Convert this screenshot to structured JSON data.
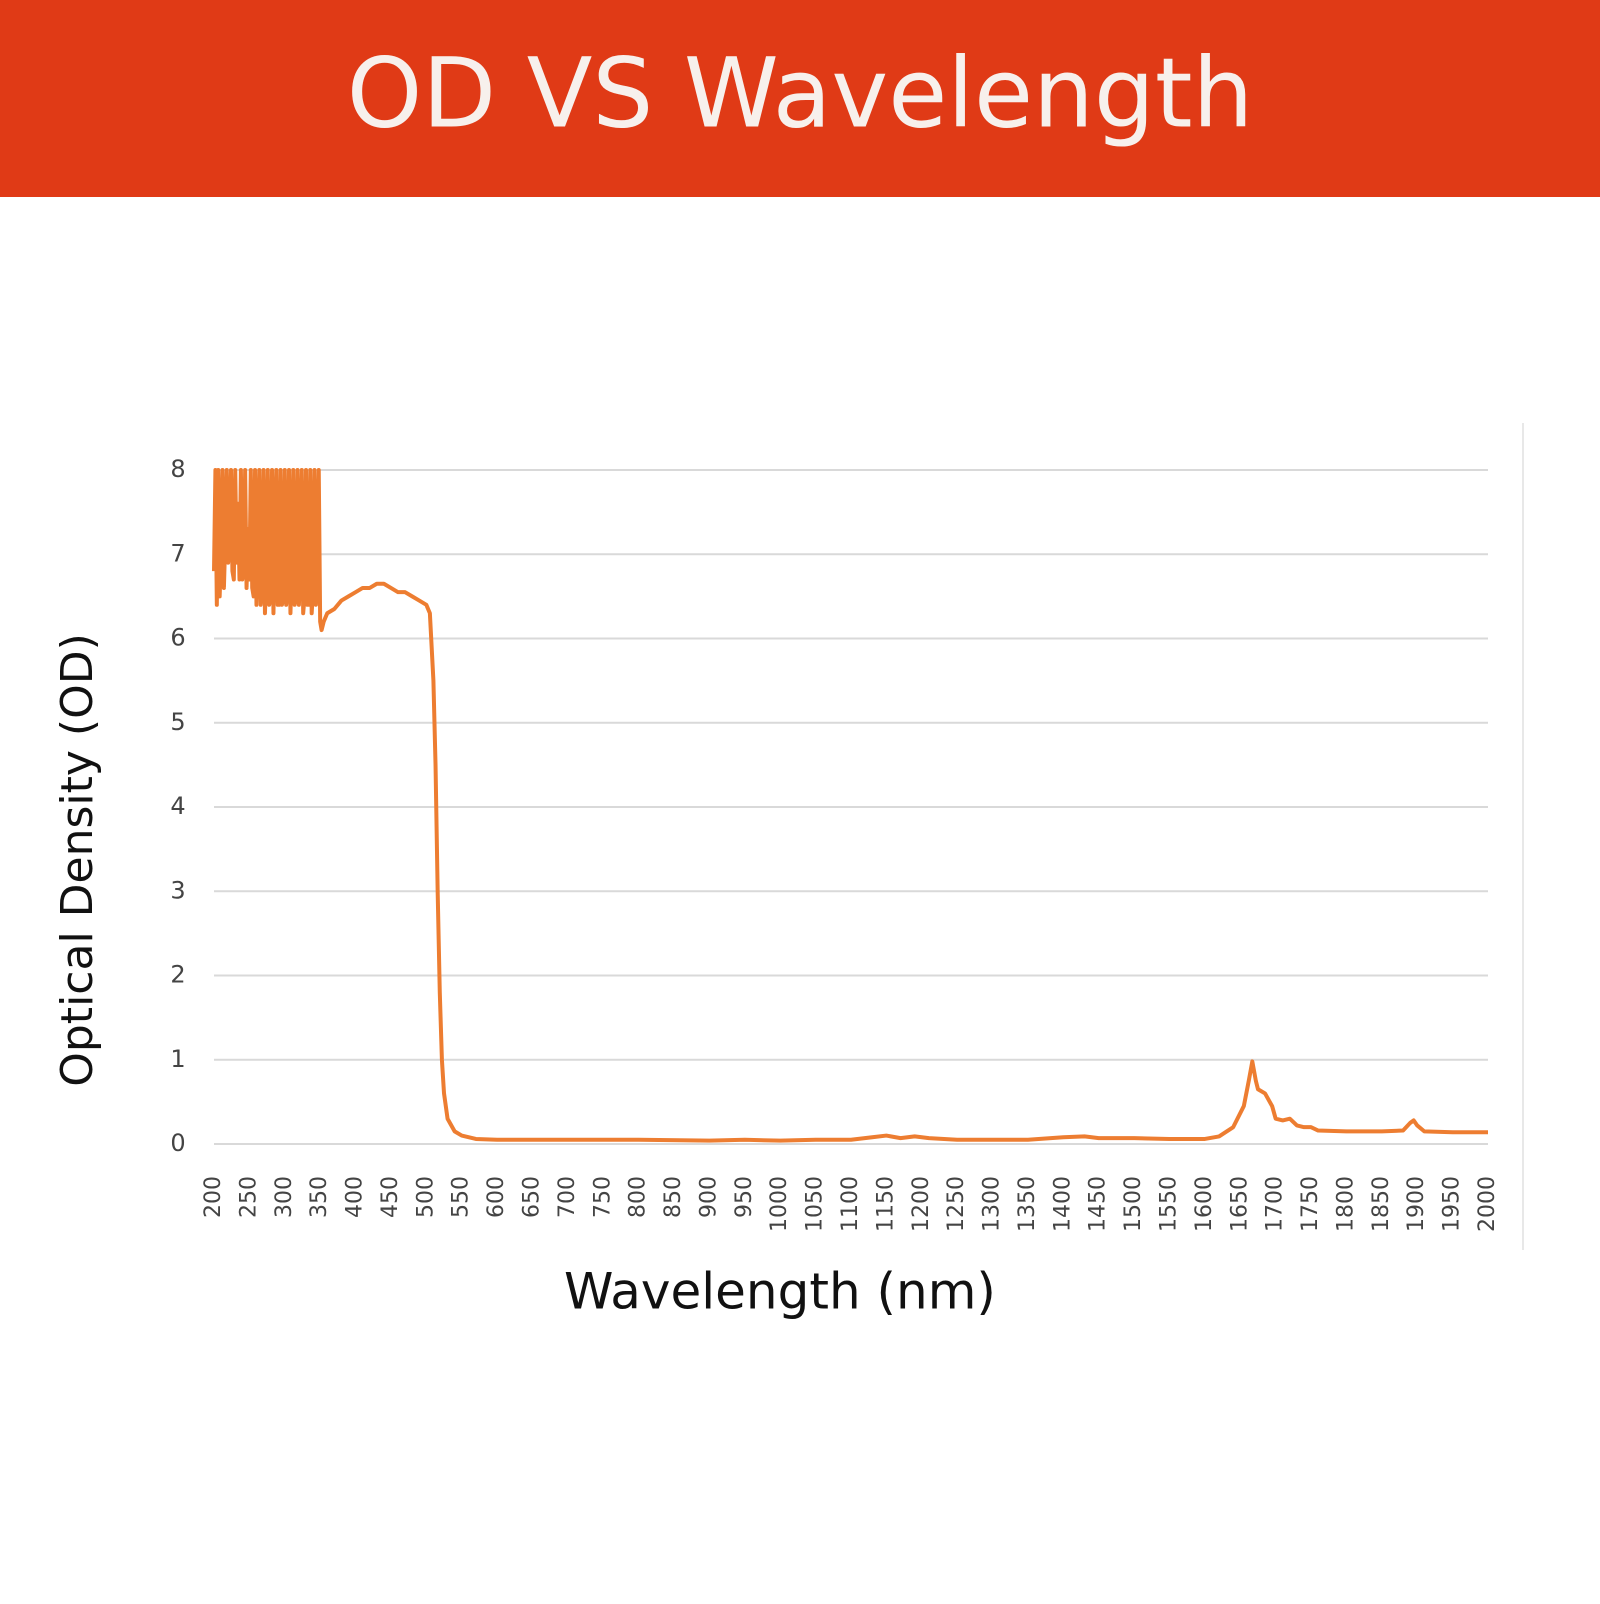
{
  "chart_data": {
    "type": "line",
    "title": "OD VS Wavelength",
    "xlabel": "Wavelength (nm)",
    "ylabel": "Optical Density (OD)",
    "x": [
      200,
      202,
      204,
      206,
      208,
      210,
      212,
      214,
      216,
      218,
      220,
      222,
      224,
      226,
      228,
      230,
      232,
      234,
      236,
      238,
      240,
      242,
      244,
      246,
      248,
      250,
      252,
      254,
      256,
      258,
      260,
      262,
      264,
      266,
      268,
      270,
      272,
      274,
      276,
      278,
      280,
      282,
      284,
      286,
      288,
      290,
      292,
      294,
      296,
      298,
      300,
      302,
      304,
      306,
      308,
      310,
      312,
      314,
      316,
      318,
      320,
      322,
      324,
      326,
      328,
      330,
      332,
      334,
      336,
      338,
      340,
      342,
      344,
      346,
      348,
      350,
      352,
      355,
      360,
      370,
      380,
      390,
      400,
      410,
      420,
      430,
      440,
      450,
      460,
      470,
      480,
      490,
      500,
      505,
      510,
      513,
      516,
      519,
      522,
      525,
      530,
      540,
      550,
      570,
      600,
      700,
      800,
      900,
      950,
      1000,
      1050,
      1100,
      1130,
      1150,
      1170,
      1190,
      1210,
      1250,
      1300,
      1350,
      1400,
      1430,
      1450,
      1500,
      1550,
      1600,
      1620,
      1640,
      1655,
      1662,
      1667,
      1672,
      1675,
      1685,
      1695,
      1700,
      1710,
      1720,
      1730,
      1740,
      1750,
      1760,
      1800,
      1850,
      1880,
      1890,
      1895,
      1900,
      1910,
      1950,
      2000
    ],
    "series": [
      {
        "name": "OD",
        "color": "#ed7d31",
        "values": [
          6.8,
          8,
          6.4,
          8,
          6.5,
          7.0,
          8,
          6.6,
          7.2,
          8,
          6.9,
          7.1,
          8,
          6.8,
          6.7,
          8,
          6.9,
          7.6,
          6.7,
          8,
          6.7,
          6.8,
          8,
          6.6,
          7.3,
          6.7,
          8,
          6.6,
          6.5,
          8,
          6.4,
          7.0,
          8,
          6.4,
          6.6,
          8,
          6.3,
          6.8,
          8,
          6.4,
          6.5,
          8,
          6.3,
          7.2,
          8,
          6.4,
          6.4,
          8,
          6.4,
          6.5,
          8,
          6.4,
          6.6,
          8,
          6.3,
          6.8,
          8,
          6.4,
          6.5,
          8,
          6.4,
          7.0,
          8,
          6.3,
          6.5,
          8,
          6.4,
          6.4,
          8,
          6.3,
          6.6,
          8,
          6.4,
          6.8,
          8,
          6.2,
          6.1,
          6.2,
          6.3,
          6.35,
          6.45,
          6.5,
          6.55,
          6.6,
          6.6,
          6.65,
          6.65,
          6.6,
          6.55,
          6.55,
          6.5,
          6.45,
          6.4,
          6.3,
          5.5,
          4.5,
          3.0,
          1.8,
          1.0,
          0.6,
          0.3,
          0.15,
          0.1,
          0.06,
          0.05,
          0.05,
          0.05,
          0.04,
          0.05,
          0.04,
          0.05,
          0.05,
          0.08,
          0.1,
          0.07,
          0.09,
          0.07,
          0.05,
          0.05,
          0.05,
          0.08,
          0.09,
          0.07,
          0.07,
          0.06,
          0.06,
          0.09,
          0.2,
          0.45,
          0.75,
          0.98,
          0.75,
          0.65,
          0.6,
          0.45,
          0.3,
          0.28,
          0.3,
          0.22,
          0.2,
          0.2,
          0.16,
          0.15,
          0.15,
          0.16,
          0.25,
          0.28,
          0.22,
          0.15,
          0.14,
          0.14
        ]
      }
    ],
    "xlim": [
      200,
      2000
    ],
    "xticks": [
      200,
      250,
      300,
      350,
      400,
      450,
      500,
      550,
      600,
      650,
      700,
      750,
      800,
      850,
      900,
      950,
      1000,
      1050,
      1100,
      1150,
      1200,
      1250,
      1300,
      1350,
      1400,
      1450,
      1500,
      1550,
      1600,
      1650,
      1700,
      1750,
      1800,
      1850,
      1900,
      1950,
      2000
    ],
    "ylim": [
      0,
      8
    ],
    "yticks": [
      0,
      1,
      2,
      3,
      4,
      5,
      6,
      7,
      8
    ],
    "grid": true
  }
}
